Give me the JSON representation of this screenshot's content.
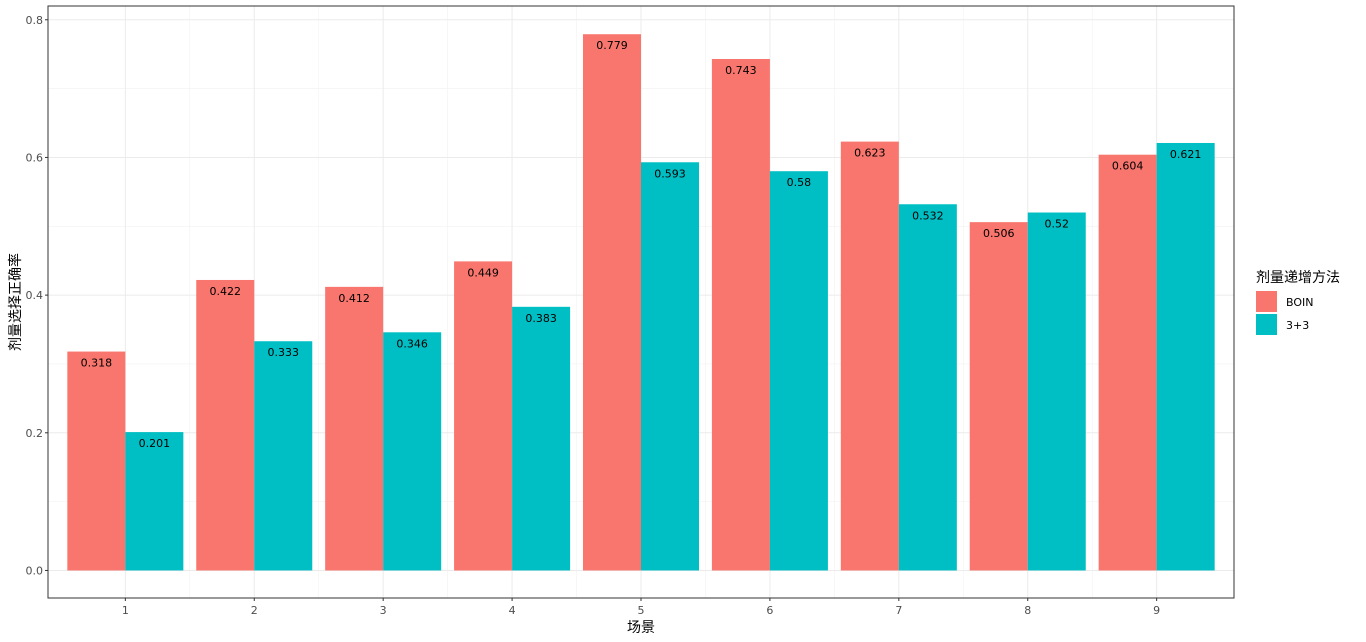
{
  "chart_data": {
    "type": "bar",
    "categories": [
      "1",
      "2",
      "3",
      "4",
      "5",
      "6",
      "7",
      "8",
      "9"
    ],
    "series": [
      {
        "name": "BOIN",
        "color": "#F8766D",
        "values": [
          0.318,
          0.422,
          0.412,
          0.449,
          0.779,
          0.743,
          0.623,
          0.506,
          0.604
        ],
        "labels": [
          "0.318",
          "0.422",
          "0.412",
          "0.449",
          "0.779",
          "0.743",
          "0.623",
          "0.506",
          "0.604"
        ]
      },
      {
        "name": "3+3",
        "color": "#00BFC4",
        "values": [
          0.201,
          0.333,
          0.346,
          0.383,
          0.593,
          0.58,
          0.532,
          0.52,
          0.621
        ],
        "labels": [
          "0.201",
          "0.333",
          "0.346",
          "0.383",
          "0.593",
          "0.58",
          "0.532",
          "0.52",
          "0.621"
        ]
      }
    ],
    "xlabel": "场景",
    "ylabel": "剂量选择正确率",
    "legend_title": "剂量递增方法",
    "legend_position": "right",
    "ylim": [
      -0.04,
      0.82
    ],
    "yticks": [
      0.0,
      0.2,
      0.4,
      0.6,
      0.8
    ],
    "ytick_labels": [
      "0.0",
      "0.2",
      "0.4",
      "0.6",
      "0.8"
    ],
    "grid": true,
    "theme": "bw"
  }
}
